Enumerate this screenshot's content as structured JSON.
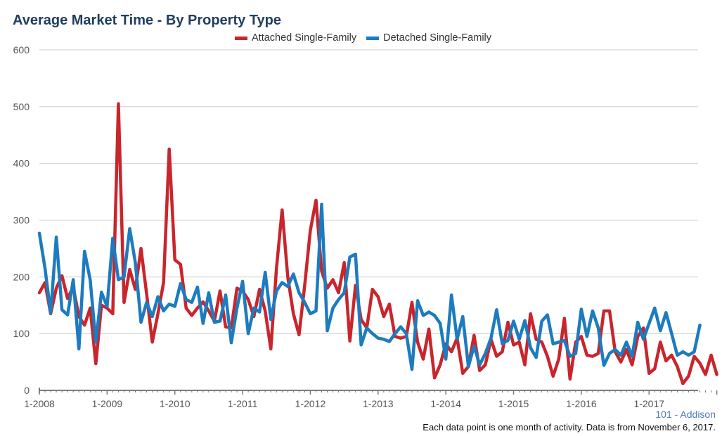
{
  "chart_data": {
    "type": "line",
    "title": "Average Market Time - By Property Type",
    "xlabel": "",
    "ylabel": "",
    "ylim": [
      0,
      600
    ],
    "yticks": [
      "0",
      "100",
      "200",
      "300",
      "400",
      "500",
      "600"
    ],
    "x_tick_labels": [
      "1-2008",
      "1-2009",
      "1-2010",
      "1-2011",
      "1-2012",
      "1-2013",
      "1-2014",
      "1-2015",
      "1-2016",
      "1-2017"
    ],
    "x_start": "2008-01",
    "x_interval": "month",
    "grid": true,
    "legend_position": "top-center",
    "series": [
      {
        "name": "Attached Single-Family",
        "color": "#c9252c",
        "values": [
          172,
          190,
          135,
          180,
          202,
          162,
          182,
          130,
          115,
          145,
          47,
          150,
          145,
          135,
          505,
          155,
          213,
          178,
          250,
          170,
          85,
          135,
          190,
          425,
          230,
          222,
          145,
          132,
          145,
          156,
          140,
          122,
          175,
          112,
          110,
          180,
          175,
          160,
          130,
          178,
          140,
          73,
          215,
          318,
          200,
          135,
          98,
          185,
          282,
          335,
          210,
          180,
          195,
          172,
          225,
          87,
          185,
          125,
          110,
          178,
          165,
          130,
          152,
          95,
          92,
          95,
          155,
          85,
          55,
          108,
          22,
          45,
          82,
          68,
          92,
          30,
          42,
          97,
          35,
          45,
          90,
          60,
          68,
          120,
          80,
          85,
          45,
          135,
          90,
          85,
          60,
          25,
          55,
          127,
          20,
          85,
          95,
          62,
          60,
          65,
          140,
          140,
          68,
          50,
          72,
          45,
          95,
          110,
          30,
          38,
          85,
          52,
          62,
          42,
          12,
          25,
          60,
          48,
          28,
          62,
          28
        ]
      },
      {
        "name": "Detached Single-Family",
        "color": "#1d7bbf",
        "values": [
          277,
          215,
          136,
          270,
          142,
          133,
          195,
          73,
          245,
          195,
          85,
          173,
          148,
          268,
          195,
          200,
          285,
          225,
          120,
          155,
          130,
          165,
          140,
          152,
          148,
          188,
          160,
          155,
          182,
          118,
          172,
          120,
          122,
          168,
          84,
          145,
          192,
          100,
          145,
          138,
          208,
          125,
          175,
          190,
          183,
          205,
          172,
          155,
          135,
          140,
          328,
          105,
          145,
          160,
          172,
          235,
          240,
          80,
          110,
          100,
          92,
          90,
          86,
          100,
          112,
          100,
          37,
          158,
          132,
          138,
          132,
          118,
          55,
          168,
          90,
          130,
          42,
          78,
          45,
          65,
          92,
          142,
          82,
          88,
          122,
          90,
          123,
          75,
          58,
          122,
          133,
          82,
          85,
          88,
          60,
          65,
          143,
          95,
          140,
          110,
          44,
          65,
          72,
          62,
          85,
          60,
          120,
          90,
          118,
          145,
          105,
          137,
          100,
          62,
          68,
          62,
          68,
          115
        ]
      }
    ]
  },
  "footer": {
    "source": "101 - Addison",
    "note": "Each data point is one month of activity. Data is from November 6, 2017."
  }
}
